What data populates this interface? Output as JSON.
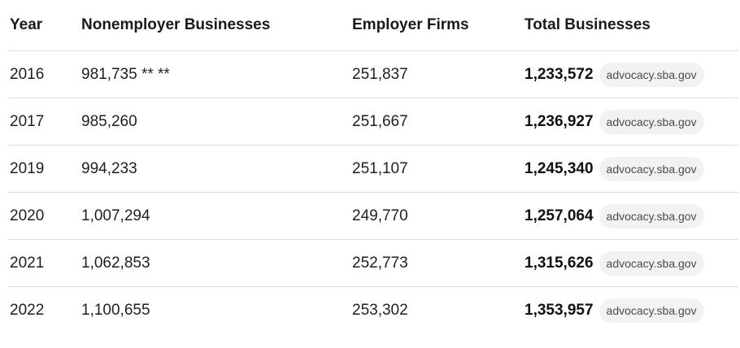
{
  "table": {
    "headers": {
      "year": "Year",
      "nonemployer": "Nonemployer Businesses",
      "employer": "Employer Firms",
      "total": "Total Businesses"
    },
    "rows": [
      {
        "year": "2016",
        "nonemployer": "981,735 ** **",
        "employer": "251,837",
        "total": "1,233,572",
        "source": "advocacy.sba.gov"
      },
      {
        "year": "2017",
        "nonemployer": "985,260",
        "employer": "251,667",
        "total": "1,236,927",
        "source": "advocacy.sba.gov"
      },
      {
        "year": "2019",
        "nonemployer": "994,233",
        "employer": "251,107",
        "total": "1,245,340",
        "source": "advocacy.sba.gov"
      },
      {
        "year": "2020",
        "nonemployer": "1,007,294",
        "employer": "249,770",
        "total": "1,257,064",
        "source": "advocacy.sba.gov"
      },
      {
        "year": "2021",
        "nonemployer": "1,062,853",
        "employer": "252,773",
        "total": "1,315,626",
        "source": "advocacy.sba.gov"
      },
      {
        "year": "2022",
        "nonemployer": "1,100,655",
        "employer": "253,302",
        "total": "1,353,957",
        "source": "advocacy.sba.gov"
      }
    ]
  }
}
